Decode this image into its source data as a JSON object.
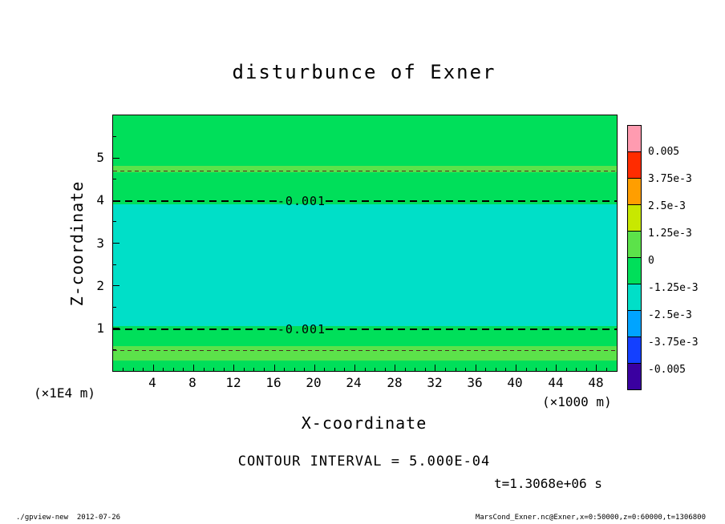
{
  "title": "disturbunce of Exner",
  "axes": {
    "x": {
      "label": "X-coordinate",
      "unit": "(×1000 m)",
      "ticks": [
        "4",
        "8",
        "12",
        "16",
        "20",
        "24",
        "28",
        "32",
        "36",
        "40",
        "44",
        "48"
      ]
    },
    "y": {
      "label": "Z-coordinate",
      "unit": "(×1E4 m)",
      "ticks": [
        "5",
        "4",
        "3",
        "2",
        "1"
      ]
    }
  },
  "plot": {
    "bands": [
      {
        "name": "upper-green",
        "color": "#00df5a"
      },
      {
        "name": "upper-light-green-strip",
        "color": "#5ce24a"
      },
      {
        "name": "mid-upper-green",
        "color": "#00df5a"
      },
      {
        "name": "central-turquoise-band",
        "color": "#00dfc8"
      },
      {
        "name": "mid-lower-green",
        "color": "#00df5a"
      },
      {
        "name": "lower-light-green-strip",
        "color": "#5ce24a"
      },
      {
        "name": "bottom-green",
        "color": "#00df5a"
      }
    ],
    "contour_label": "-0.001"
  },
  "colorbar": {
    "labels": [
      "0.005",
      "3.75e-3",
      "2.5e-3",
      "1.25e-3",
      "0",
      "-1.25e-3",
      "-2.5e-3",
      "-3.75e-3",
      "-0.005"
    ],
    "colors": [
      "#ff9bb0",
      "#ff2c00",
      "#ff9e00",
      "#c8e800",
      "#5ce24a",
      "#00df5a",
      "#00dfc8",
      "#00a4ff",
      "#1440ff",
      "#3a00a0"
    ]
  },
  "annotations": {
    "contour_interval": "CONTOUR INTERVAL = 5.000E-04",
    "time": "t=1.3068e+06 s"
  },
  "footer": {
    "left": "./gpview-new  2012-07-26",
    "right": "MarsCond_Exner.nc@Exner,x=0:50000,z=0:60000,t=1306800"
  },
  "chart_data": {
    "type": "heatmap",
    "title": "disturbunce of Exner",
    "xlabel": "X-coordinate",
    "x_unit": "×1000 m",
    "ylabel": "Z-coordinate",
    "y_unit": "×1E4 m",
    "xlim": [
      0,
      50
    ],
    "ylim": [
      0,
      6
    ],
    "x_ticks": [
      4,
      8,
      12,
      16,
      20,
      24,
      28,
      32,
      36,
      40,
      44,
      48
    ],
    "y_ticks": [
      1,
      2,
      3,
      4,
      5
    ],
    "grid": false,
    "legend_position": "right-colorbar",
    "contour_interval": 0.0005,
    "labeled_contours": [
      {
        "value": -0.001,
        "z": 4.0,
        "style": "bold-dashed"
      },
      {
        "value": -0.001,
        "z": 1.0,
        "style": "bold-dashed"
      }
    ],
    "unlabeled_contours": [
      {
        "value": -0.0005,
        "z": 4.68,
        "style": "thin-dashed"
      },
      {
        "value": -0.0005,
        "z": 0.47,
        "style": "thin-dashed"
      }
    ],
    "tone_levels": [
      0.005,
      0.00375,
      0.0025,
      0.00125,
      0,
      -0.00125,
      -0.0025,
      -0.00375,
      -0.005
    ],
    "bands": [
      {
        "z_from": 4.81,
        "z_to": 6.0,
        "value_range": "0 to -1.25e-3"
      },
      {
        "z_from": 4.66,
        "z_to": 4.81,
        "value_range": "0 to +1.25e-3"
      },
      {
        "z_from": 3.91,
        "z_to": 4.66,
        "value_range": "0 to -1.25e-3"
      },
      {
        "z_from": 1.05,
        "z_to": 3.91,
        "value_range": "-1.25e-3 to -2.5e-3"
      },
      {
        "z_from": 0.58,
        "z_to": 1.05,
        "value_range": "0 to -1.25e-3"
      },
      {
        "z_from": 0.24,
        "z_to": 0.58,
        "value_range": "0 to +1.25e-3"
      },
      {
        "z_from": 0.0,
        "z_to": 0.24,
        "value_range": "0 to -1.25e-3"
      }
    ],
    "time_seconds": 1306800
  }
}
